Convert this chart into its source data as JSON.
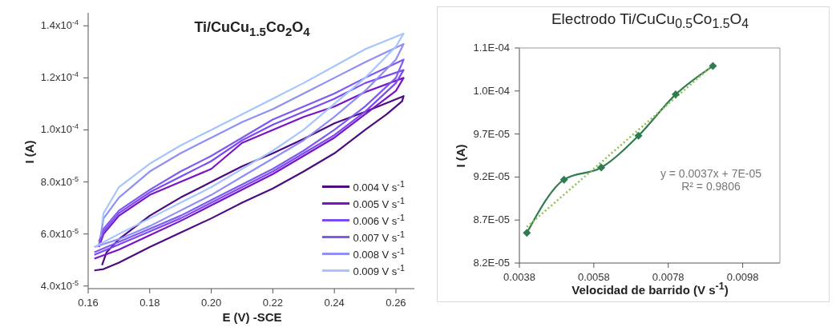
{
  "chart_data": [
    {
      "type": "line",
      "title": "Ti/CuCu$_{1.5}$Co$_{2}$O$_{4}$",
      "xlabel": "E (V) -SCE",
      "ylabel": "I (A)",
      "marker": "none",
      "legend": "bottom right",
      "xlim": [
        0.16,
        0.266
      ],
      "ylim": [
        3.9e-05,
        0.000145
      ],
      "xticks": [
        0.16,
        0.18,
        {
          "value": 0.2,
          "label": "0.20"
        },
        0.22,
        0.24,
        0.26
      ],
      "yticks": [
        {
          "value": 4e-05,
          "label": "4.0x10$^{-5}$"
        },
        {
          "value": 6e-05,
          "label": "6.0x10$^{-5}$"
        },
        {
          "value": 8e-05,
          "label": "8.0x10$^{-5}$"
        },
        {
          "value": 0.0001,
          "label": "1.0x10$^{-4}$"
        },
        {
          "value": 0.00012,
          "label": "1.2x10$^{-4}$"
        },
        {
          "value": 0.00014,
          "label": "1.4x10$^{-4}$"
        }
      ],
      "series": [
        {
          "name": "0.004 V s$^{-1}$",
          "color": "#4b0c82",
          "x": [
            0.162,
            0.165,
            0.17,
            0.18,
            0.19,
            0.2,
            0.21,
            0.22,
            0.23,
            0.24,
            0.25,
            0.257,
            0.262,
            0.2625,
            0.25,
            0.24,
            0.23,
            0.22,
            0.21,
            0.2,
            0.19,
            0.18,
            0.17,
            0.166,
            0.1645
          ],
          "values": [
            4.6e-05,
            4.65e-05,
            4.9e-05,
            5.5e-05,
            6.05e-05,
            6.6e-05,
            7.2e-05,
            7.75e-05,
            8.4e-05,
            9.1e-05,
            0.0001,
            0.000106,
            0.000111,
            0.000113,
            0.000107,
            0.0001025,
            9.65e-05,
            9.1e-05,
            8.6e-05,
            8e-05,
            7.4e-05,
            6.7e-05,
            5.8e-05,
            5.3e-05,
            4.8e-05
          ]
        },
        {
          "name": "0.005 V s$^{-1}$",
          "color": "#7a13c4",
          "x": [
            0.162,
            0.17,
            0.18,
            0.19,
            0.2,
            0.21,
            0.22,
            0.23,
            0.24,
            0.25,
            0.26,
            0.2625,
            0.25,
            0.24,
            0.23,
            0.22,
            0.21,
            0.2,
            0.19,
            0.18,
            0.17,
            0.165,
            0.1635
          ],
          "values": [
            5.05e-05,
            5.4e-05,
            5.95e-05,
            6.5e-05,
            7.1e-05,
            7.7e-05,
            8.3e-05,
            9e-05,
            9.7e-05,
            0.000106,
            0.000115,
            0.00012,
            0.0001145,
            0.000109,
            0.000105,
            0.0001,
            9.5e-05,
            8.5e-05,
            8e-05,
            7.5e-05,
            6.7e-05,
            6e-05,
            5.5e-05
          ]
        },
        {
          "name": "0.006 V s$^{-1}$",
          "color": "#7b4cf5",
          "x": [
            0.162,
            0.17,
            0.18,
            0.19,
            0.2,
            0.21,
            0.22,
            0.23,
            0.24,
            0.25,
            0.26,
            0.2625,
            0.25,
            0.24,
            0.23,
            0.22,
            0.21,
            0.2,
            0.19,
            0.18,
            0.17,
            0.165,
            0.1635
          ],
          "values": [
            5.2e-05,
            5.6e-05,
            6.1e-05,
            6.6e-05,
            7.2e-05,
            7.8e-05,
            8.4e-05,
            9.1e-05,
            9.8e-05,
            0.000107,
            0.000118,
            0.000123,
            0.000118,
            0.000112,
            0.000107,
            0.000102,
            9.6e-05,
            8.8e-05,
            8.2e-05,
            7.6e-05,
            6.8e-05,
            6.1e-05,
            5.6e-05
          ]
        },
        {
          "name": "0.007 V s$^{-1}$",
          "color": "#7f5af0",
          "x": [
            0.162,
            0.17,
            0.18,
            0.19,
            0.2,
            0.21,
            0.22,
            0.23,
            0.24,
            0.25,
            0.26,
            0.2625,
            0.25,
            0.24,
            0.23,
            0.22,
            0.21,
            0.2,
            0.19,
            0.18,
            0.17,
            0.165,
            0.1635
          ],
          "values": [
            5.3e-05,
            5.7e-05,
            6.2e-05,
            6.7e-05,
            7.3e-05,
            7.9e-05,
            8.5e-05,
            9.2e-05,
            0.0001,
            0.000109,
            0.00012,
            0.000127,
            0.00012,
            0.000114,
            0.000109,
            0.000104,
            9.7e-05,
            9e-05,
            8.4e-05,
            7.7e-05,
            6.9e-05,
            6.2e-05,
            5.7e-05
          ]
        },
        {
          "name": "0.008 V s$^{-1}$",
          "color": "#8f8ff6",
          "x": [
            0.162,
            0.17,
            0.18,
            0.19,
            0.2,
            0.21,
            0.22,
            0.23,
            0.24,
            0.25,
            0.26,
            0.2625,
            0.25,
            0.24,
            0.23,
            0.22,
            0.21,
            0.2,
            0.19,
            0.18,
            0.17,
            0.165,
            0.164
          ],
          "values": [
            5.5e-05,
            5.8e-05,
            6.3e-05,
            6.9e-05,
            7.5e-05,
            8.2e-05,
            8.9e-05,
            9.6e-05,
            0.000105,
            0.000115,
            0.000127,
            0.000133,
            0.000126,
            0.00012,
            0.000114,
            0.000108,
            0.000103,
            9.7e-05,
            9.1e-05,
            8.4e-05,
            7.4e-05,
            6.6e-05,
            5.9e-05
          ]
        },
        {
          "name": "0.009 V s$^{-1}$",
          "color": "#a6c5ff",
          "x": [
            0.162,
            0.17,
            0.18,
            0.19,
            0.2,
            0.21,
            0.22,
            0.23,
            0.24,
            0.25,
            0.26,
            0.2625,
            0.25,
            0.24,
            0.23,
            0.22,
            0.21,
            0.2,
            0.19,
            0.18,
            0.17,
            0.165,
            0.1645
          ],
          "values": [
            5.5e-05,
            6e-05,
            6.6e-05,
            7.2e-05,
            7.8e-05,
            8.5e-05,
            9.2e-05,
            0.0001,
            0.00011,
            0.00012,
            0.000132,
            0.000137,
            0.000131,
            0.0001245,
            0.000118,
            0.000112,
            0.000106,
            0.0001,
            9.4e-05,
            8.7e-05,
            7.8e-05,
            6.8e-05,
            6.4e-05
          ]
        }
      ]
    },
    {
      "type": "line",
      "title": "Electrodo Ti/CuCu$_{0.5}$Co$_{1.5}$O$_{4}$",
      "xlabel": "Velocidad de barrido (V s$^{-1}$)",
      "ylabel": "I (A)",
      "legend": false,
      "xlim": [
        0.0038,
        0.0108
      ],
      "ylim": [
        8.2e-05,
        0.000107
      ],
      "xticks": [
        0.0038,
        0.0058,
        0.0078,
        0.0098
      ],
      "yticks": [
        {
          "value": 8.2e-05,
          "label": "8.2E-05"
        },
        {
          "value": 8.7e-05,
          "label": "8.7E-05"
        },
        {
          "value": 9.2e-05,
          "label": "9.2E-05"
        },
        {
          "value": 9.7e-05,
          "label": "9.7E-05"
        },
        {
          "value": 0.000102,
          "label": "1.0E-04"
        },
        {
          "value": 0.000107,
          "label": "1.1E-04"
        }
      ],
      "annotations": [
        "y = 0.0037x + 7E-05",
        "R² = 0.9806"
      ],
      "series": [
        {
          "type": "line",
          "color": "#2f7d4f",
          "marker": "diamond",
          "x": [
            0.004,
            0.005,
            0.006,
            0.007,
            0.008,
            0.009
          ],
          "values": [
            8.55e-05,
            9.17e-05,
            9.31e-05,
            9.68e-05,
            0.0001016,
            0.0001049
          ]
        },
        {
          "type": "line",
          "color": "#8cc152",
          "marker": "none",
          "line_style": "dotted",
          "x": [
            0.004,
            0.009
          ],
          "values": [
            8.62e-05,
            0.000105
          ]
        }
      ]
    }
  ]
}
